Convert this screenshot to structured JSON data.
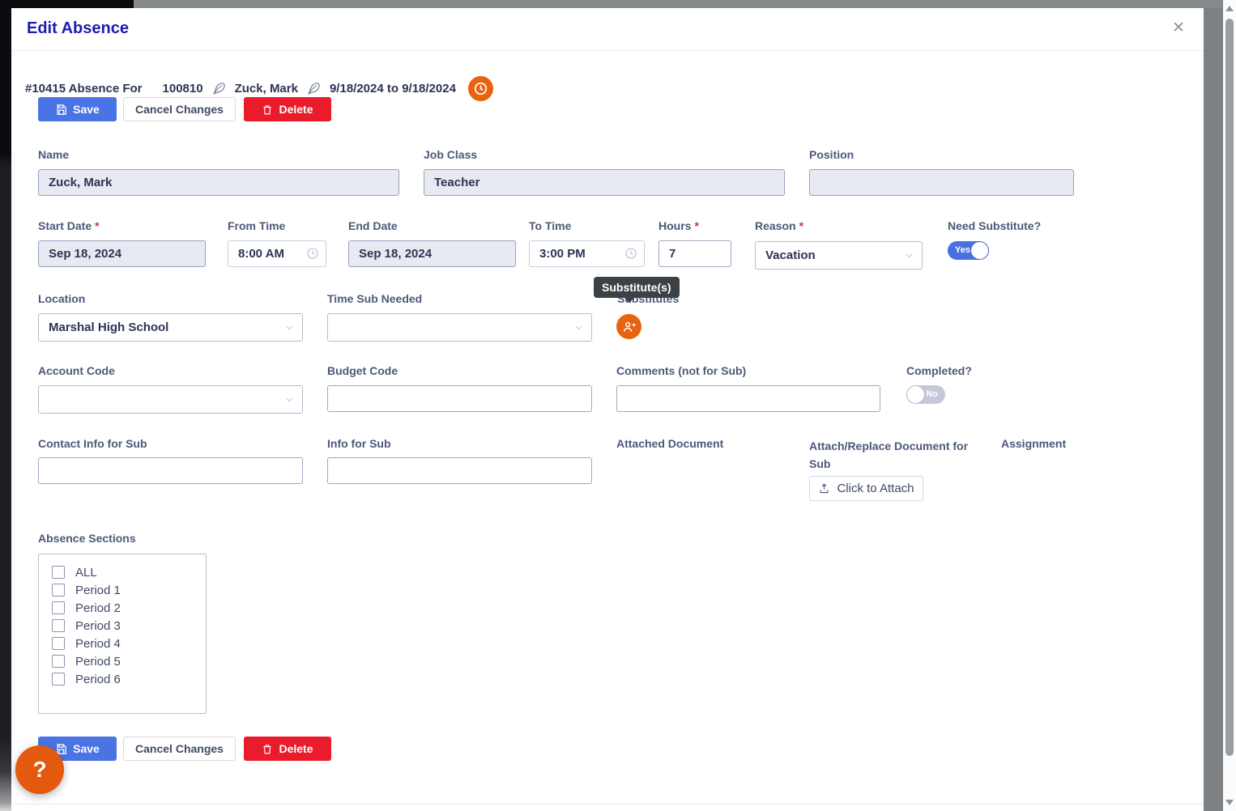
{
  "modal": {
    "title": "Edit Absence",
    "close_icon": "✕"
  },
  "summary": {
    "absence_label": "#10415 Absence For",
    "employee_id": "100810",
    "employee_name": "Zuck, Mark",
    "date_range": "9/18/2024 to 9/18/2024"
  },
  "toolbar": {
    "save_label": "Save",
    "cancel_label": "Cancel Changes",
    "delete_label": "Delete"
  },
  "required_marker": "*",
  "fields": {
    "name": {
      "label": "Name",
      "value": "Zuck, Mark"
    },
    "job_class": {
      "label": "Job Class",
      "value": "Teacher"
    },
    "position": {
      "label": "Position",
      "value": ""
    },
    "start_date": {
      "label": "Start Date",
      "value": "Sep 18, 2024"
    },
    "from_time": {
      "label": "From Time",
      "value": "8:00 AM"
    },
    "end_date": {
      "label": "End Date",
      "value": "Sep 18, 2024"
    },
    "to_time": {
      "label": "To Time",
      "value": "3:00 PM"
    },
    "hours": {
      "label": "Hours",
      "value": "7"
    },
    "reason": {
      "label": "Reason",
      "value": "Vacation"
    },
    "need_substitute": {
      "label": "Need Substitute?",
      "value": "Yes"
    },
    "location": {
      "label": "Location",
      "value": "Marshal High School"
    },
    "time_sub_needed": {
      "label": "Time Sub Needed",
      "value": ""
    },
    "substitutes": {
      "label": "Substitutes"
    },
    "account_code": {
      "label": "Account Code",
      "value": ""
    },
    "budget_code": {
      "label": "Budget Code",
      "value": ""
    },
    "comments": {
      "label": "Comments (not for Sub)",
      "value": ""
    },
    "completed": {
      "label": "Completed?",
      "value": "No"
    },
    "contact_info": {
      "label": "Contact Info for Sub",
      "value": ""
    },
    "info_for_sub": {
      "label": "Info for Sub",
      "value": ""
    },
    "attached_document": {
      "label": "Attached Document"
    },
    "attach_replace": {
      "label": "Attach/Replace Document for Sub",
      "button_label": "Click to Attach"
    },
    "assignment": {
      "label": "Assignment"
    }
  },
  "tooltip": {
    "text": "Substitute(s)"
  },
  "absence_sections": {
    "label": "Absence Sections",
    "options": [
      "ALL",
      "Period 1",
      "Period 2",
      "Period 3",
      "Period 4",
      "Period 5",
      "Period 6"
    ]
  },
  "help": {
    "question_mark": "?"
  },
  "colors": {
    "accent_orange": "#e8630f",
    "primary_blue": "#4a73e3",
    "danger_red": "#ea1c2c",
    "title_blue": "#1c1cb0",
    "toggle_on_blue": "#4a6fe0",
    "toggle_off_gray": "#c7c7db"
  }
}
